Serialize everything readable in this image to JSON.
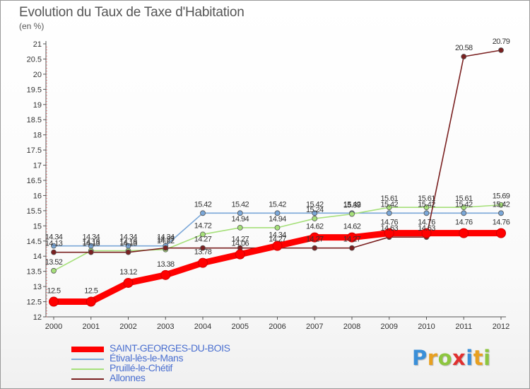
{
  "header": {
    "title": "Evolution du Taux de Taxe d'Habitation",
    "subtitle": "(en %)"
  },
  "logo": {
    "text": "Proxiti",
    "colors": [
      "#3a8fd8",
      "#e8a020",
      "#8dc63f",
      "#e03030",
      "#3a8fd8",
      "#e8a020",
      "#8dc63f"
    ]
  },
  "chart_data": {
    "type": "line",
    "title": "Evolution du Taux de Taxe d'Habitation",
    "ylabel": "(en %)",
    "xlabel": "",
    "x": [
      "2000",
      "2001",
      "2002",
      "2003",
      "2004",
      "2005",
      "2006",
      "2007",
      "2008",
      "2009",
      "2010",
      "2011",
      "2012"
    ],
    "ylim": [
      12,
      21
    ],
    "yticks": [
      "12",
      "12.5",
      "13",
      "13.5",
      "14",
      "14.5",
      "15",
      "15.5",
      "16",
      "16.5",
      "17",
      "17.5",
      "18",
      "18.5",
      "19",
      "19.5",
      "20",
      "20.5",
      "21"
    ],
    "grid": false,
    "legend_position": "bottom-left",
    "series": [
      {
        "name": "SAINT-GEORGES-DU-BOIS",
        "color": "#ff0000",
        "values": [
          12.5,
          12.5,
          13.12,
          13.38,
          13.78,
          14.06,
          14.34,
          14.62,
          14.62,
          14.76,
          14.76,
          14.76,
          14.76
        ],
        "labels": [
          "12.5",
          "12.5",
          "13.12",
          "13.38",
          "13.78",
          "14.06",
          "14.34",
          "14.62",
          "14.62",
          "14.76",
          "14.76",
          "14.76",
          "14.76"
        ]
      },
      {
        "name": "Étival-lès-le-Mans",
        "color": "#7aa7d8",
        "values": [
          14.34,
          14.34,
          14.34,
          14.34,
          15.42,
          15.42,
          15.42,
          15.42,
          15.42,
          15.42,
          15.42,
          15.42,
          15.42
        ],
        "labels": [
          "14.34",
          "14.34",
          "14.34",
          "14.34",
          "15.42",
          "15.42",
          "15.42",
          "15.42",
          "15.42",
          "15.42",
          "15.42",
          "15.42",
          "15.42"
        ]
      },
      {
        "name": "Pruillé-le-Chétif",
        "color": "#a6e07a",
        "values": [
          13.52,
          14.18,
          14.18,
          14.22,
          14.72,
          14.94,
          14.94,
          15.24,
          15.39,
          15.61,
          15.61,
          15.61,
          15.69
        ],
        "labels": [
          "13.52",
          "14.18",
          "14.18",
          "14.22",
          "14.72",
          "14.94",
          "14.94",
          "15.24",
          "15.39",
          "15.61",
          "15.61",
          "15.61",
          "15.69"
        ]
      },
      {
        "name": "Allonnes",
        "color": "#7a2020",
        "values": [
          14.13,
          14.13,
          14.13,
          14.27,
          14.27,
          14.27,
          14.27,
          14.27,
          14.27,
          14.63,
          14.63,
          20.58,
          20.79
        ],
        "labels": [
          "14.13",
          "14.13",
          "14.13",
          "14.27",
          "14.27",
          "14.27",
          "14.27",
          "14.27",
          "14.27",
          "14.63",
          "14.63",
          "20.58",
          "20.79"
        ]
      }
    ]
  }
}
